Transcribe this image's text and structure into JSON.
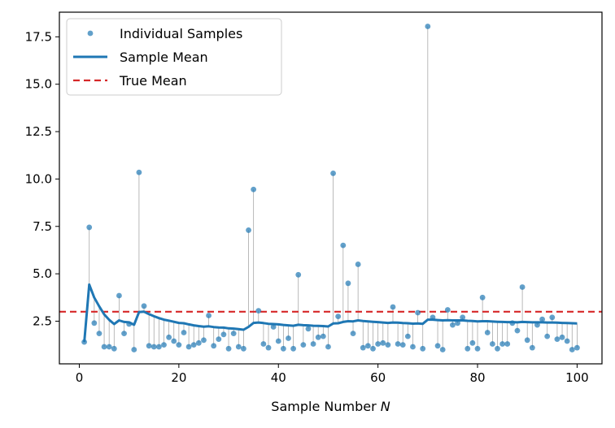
{
  "chart_data": {
    "type": "scatter",
    "xlabel": "Sample Number N",
    "ylabel": "",
    "xlim": [
      -4,
      105
    ],
    "ylim": [
      0.25,
      18.8
    ],
    "x_ticks": [
      0,
      20,
      40,
      60,
      80,
      100
    ],
    "y_ticks": [
      2.5,
      5.0,
      7.5,
      10.0,
      12.5,
      15.0,
      17.5
    ],
    "grid": false,
    "legend_position": "top-left",
    "true_mean": 3.0,
    "colors": {
      "samples": "#1f77b4",
      "mean": "#1f77b4",
      "true_mean": "#d62728",
      "stems": "#a9a9a9"
    },
    "series": [
      {
        "name": "Individual Samples",
        "kind": "points",
        "x": [
          1,
          2,
          3,
          4,
          5,
          6,
          7,
          8,
          9,
          10,
          11,
          12,
          13,
          14,
          15,
          16,
          17,
          18,
          19,
          20,
          21,
          22,
          23,
          24,
          25,
          26,
          27,
          28,
          29,
          30,
          31,
          32,
          33,
          34,
          35,
          36,
          37,
          38,
          39,
          40,
          41,
          42,
          43,
          44,
          45,
          46,
          47,
          48,
          49,
          50,
          51,
          52,
          53,
          54,
          55,
          56,
          57,
          58,
          59,
          60,
          61,
          62,
          63,
          64,
          65,
          66,
          67,
          68,
          69,
          70,
          71,
          72,
          73,
          74,
          75,
          76,
          77,
          78,
          79,
          80,
          81,
          82,
          83,
          84,
          85,
          86,
          87,
          88,
          89,
          90,
          91,
          92,
          93,
          94,
          95,
          96,
          97,
          98,
          99,
          100
        ],
        "y": [
          1.4,
          7.45,
          2.4,
          1.85,
          1.15,
          1.15,
          1.05,
          3.85,
          1.85,
          2.35,
          1.0,
          10.35,
          3.3,
          1.2,
          1.15,
          1.15,
          1.25,
          1.65,
          1.45,
          1.25,
          1.9,
          1.15,
          1.25,
          1.35,
          1.5,
          2.8,
          1.2,
          1.55,
          1.8,
          1.05,
          1.85,
          1.15,
          1.05,
          7.3,
          9.45,
          3.05,
          1.3,
          1.1,
          2.2,
          1.45,
          1.05,
          1.6,
          1.05,
          4.95,
          1.25,
          2.1,
          1.3,
          1.65,
          1.7,
          1.15,
          10.3,
          2.75,
          6.5,
          4.5,
          1.85,
          5.5,
          1.1,
          1.2,
          1.05,
          1.3,
          1.35,
          1.25,
          3.25,
          1.3,
          1.25,
          1.7,
          1.15,
          2.95,
          1.05,
          18.05,
          2.7,
          1.2,
          1.0,
          3.1,
          2.3,
          2.4,
          2.7,
          1.05,
          1.35,
          1.05,
          3.75,
          1.9,
          1.3,
          1.05,
          1.3,
          1.3,
          2.4,
          2.0,
          4.3,
          1.5,
          1.1,
          2.3,
          2.6,
          1.7,
          2.7,
          1.55,
          1.65,
          1.45,
          1.0,
          1.1
        ]
      },
      {
        "name": "Sample Mean",
        "kind": "line",
        "x": [
          1,
          2,
          3,
          4,
          5,
          6,
          7,
          8,
          9,
          10,
          11,
          12,
          13,
          14,
          15,
          16,
          17,
          18,
          19,
          20,
          21,
          22,
          23,
          24,
          25,
          26,
          27,
          28,
          29,
          30,
          31,
          32,
          33,
          34,
          35,
          36,
          37,
          38,
          39,
          40,
          41,
          42,
          43,
          44,
          45,
          46,
          47,
          48,
          49,
          50,
          51,
          52,
          53,
          54,
          55,
          56,
          57,
          58,
          59,
          60,
          61,
          62,
          63,
          64,
          65,
          66,
          67,
          68,
          69,
          70,
          71,
          72,
          73,
          74,
          75,
          76,
          77,
          78,
          79,
          80,
          81,
          82,
          83,
          84,
          85,
          86,
          87,
          88,
          89,
          90,
          91,
          92,
          93,
          94,
          95,
          96,
          97,
          98,
          99,
          100
        ],
        "y": [
          1.4,
          4.43,
          3.75,
          3.28,
          2.86,
          2.57,
          2.35,
          2.54,
          2.46,
          2.44,
          2.31,
          2.98,
          3.0,
          2.87,
          2.76,
          2.66,
          2.58,
          2.53,
          2.47,
          2.41,
          2.39,
          2.33,
          2.28,
          2.24,
          2.21,
          2.23,
          2.19,
          2.17,
          2.16,
          2.12,
          2.11,
          2.08,
          2.05,
          2.2,
          2.41,
          2.43,
          2.4,
          2.36,
          2.35,
          2.33,
          2.3,
          2.28,
          2.26,
          2.31,
          2.29,
          2.28,
          2.26,
          2.25,
          2.24,
          2.22,
          2.38,
          2.39,
          2.46,
          2.5,
          2.49,
          2.54,
          2.51,
          2.49,
          2.47,
          2.45,
          2.43,
          2.41,
          2.43,
          2.42,
          2.4,
          2.39,
          2.37,
          2.38,
          2.36,
          2.58,
          2.58,
          2.56,
          2.54,
          2.55,
          2.54,
          2.54,
          2.54,
          2.52,
          2.51,
          2.49,
          2.5,
          2.5,
          2.48,
          2.47,
          2.46,
          2.45,
          2.45,
          2.44,
          2.46,
          2.45,
          2.44,
          2.44,
          2.44,
          2.43,
          2.43,
          2.42,
          2.41,
          2.4,
          2.39,
          2.38
        ]
      },
      {
        "name": "True Mean",
        "kind": "hline",
        "y": 3.0
      }
    ]
  }
}
